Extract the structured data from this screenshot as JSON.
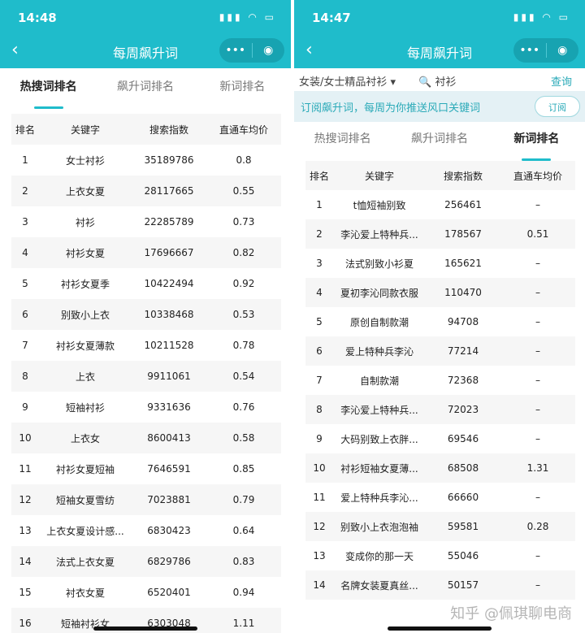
{
  "left": {
    "status": {
      "time": "14:48"
    },
    "nav": {
      "title": "每周飙升词",
      "back": "‹",
      "more": "•••",
      "target": "◉"
    },
    "tabs": [
      {
        "label": "热搜词排名",
        "active": true
      },
      {
        "label": "飙升词排名",
        "active": false
      },
      {
        "label": "新词排名",
        "active": false
      }
    ],
    "columns": [
      "排名",
      "关键字",
      "搜索指数",
      "直通车均价"
    ],
    "rows": [
      [
        "1",
        "女士衬衫",
        "35189786",
        "0.8"
      ],
      [
        "2",
        "上衣女夏",
        "28117665",
        "0.55"
      ],
      [
        "3",
        "衬衫",
        "22285789",
        "0.73"
      ],
      [
        "4",
        "衬衫女夏",
        "17696667",
        "0.82"
      ],
      [
        "5",
        "衬衫女夏季",
        "10422494",
        "0.92"
      ],
      [
        "6",
        "别致小上衣",
        "10338468",
        "0.53"
      ],
      [
        "7",
        "衬衫女夏薄款",
        "10211528",
        "0.78"
      ],
      [
        "8",
        "上衣",
        "9911061",
        "0.54"
      ],
      [
        "9",
        "短袖衬衫",
        "9331636",
        "0.76"
      ],
      [
        "10",
        "上衣女",
        "8600413",
        "0.58"
      ],
      [
        "11",
        "衬衫女夏短袖",
        "7646591",
        "0.85"
      ],
      [
        "12",
        "短袖女夏雪纺",
        "7023881",
        "0.79"
      ],
      [
        "13",
        "上衣女夏设计感...",
        "6830423",
        "0.64"
      ],
      [
        "14",
        "法式上衣女夏",
        "6829786",
        "0.83"
      ],
      [
        "15",
        "衬衣女夏",
        "6520401",
        "0.94"
      ],
      [
        "16",
        "短袖衬衫女",
        "6303048",
        "1.11"
      ]
    ]
  },
  "right": {
    "status": {
      "time": "14:47"
    },
    "nav": {
      "title": "每周飙升词",
      "back": "‹",
      "more": "•••",
      "target": "◉"
    },
    "search": {
      "category": "女装/女士精品衬衫 ▾",
      "query": "🔍 衬衫",
      "button": "查询"
    },
    "banner": {
      "text": "订阅飙升词，每周为你推送风口关键词",
      "button": "订阅"
    },
    "tabs": [
      {
        "label": "热搜词排名",
        "active": false
      },
      {
        "label": "飙升词排名",
        "active": false
      },
      {
        "label": "新词排名",
        "active": true
      }
    ],
    "columns": [
      "排名",
      "关键字",
      "搜索指数",
      "直通车均价"
    ],
    "rows": [
      [
        "1",
        "t恤短袖别致",
        "256461",
        "–"
      ],
      [
        "2",
        "李沁爱上特种兵...",
        "178567",
        "0.51"
      ],
      [
        "3",
        "法式别致小衫夏",
        "165621",
        "–"
      ],
      [
        "4",
        "夏初李沁同款衣服",
        "110470",
        "–"
      ],
      [
        "5",
        "原创自制款潮",
        "94708",
        "–"
      ],
      [
        "6",
        "爱上特种兵李沁",
        "77214",
        "–"
      ],
      [
        "7",
        "自制款潮",
        "72368",
        "–"
      ],
      [
        "8",
        "李沁爱上特种兵...",
        "72023",
        "–"
      ],
      [
        "9",
        "大码别致上衣胖...",
        "69546",
        "–"
      ],
      [
        "10",
        "衬衫短袖女夏薄...",
        "68508",
        "1.31"
      ],
      [
        "11",
        "爱上特种兵李沁...",
        "66660",
        "–"
      ],
      [
        "12",
        "别致小上衣泡泡袖",
        "59581",
        "0.28"
      ],
      [
        "13",
        "变成你的那一天",
        "55046",
        "–"
      ],
      [
        "14",
        "名牌女装夏真丝...",
        "50157",
        "–"
      ]
    ]
  },
  "watermark": "知乎 @佩琪聊电商"
}
